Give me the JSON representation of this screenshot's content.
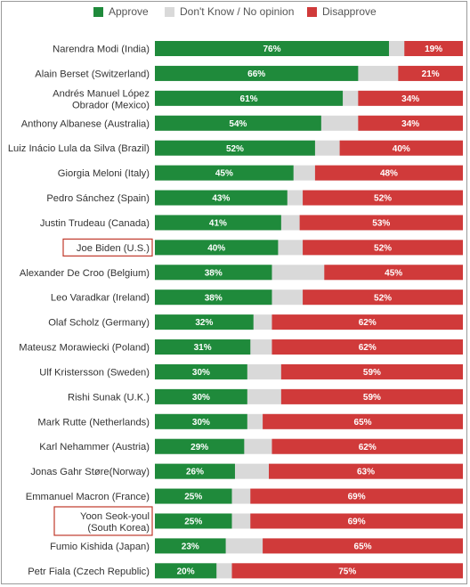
{
  "legend": {
    "approve": "Approve",
    "dont_know": "Don't Know / No opinion",
    "disapprove": "Disapprove"
  },
  "colors": {
    "approve": "#1f8a3b",
    "dont_know": "#d9d9d9",
    "disapprove": "#d03a3a",
    "highlight_box": "#c0392b"
  },
  "chart_data": {
    "type": "bar",
    "orientation": "horizontal",
    "stacked": true,
    "xlim": [
      0,
      100
    ],
    "legend_position": "top",
    "series_names": [
      "Approve",
      "Don't Know / No opinion",
      "Disapprove"
    ],
    "rows": [
      {
        "label": [
          "Narendra Modi (India)"
        ],
        "approve": 76,
        "disapprove": 19
      },
      {
        "label": [
          "Alain Berset (Switzerland)"
        ],
        "approve": 66,
        "disapprove": 21
      },
      {
        "label": [
          "Andrés Manuel López",
          "Obrador (Mexico)"
        ],
        "approve": 61,
        "disapprove": 34
      },
      {
        "label": [
          "Anthony Albanese (Australia)"
        ],
        "approve": 54,
        "disapprove": 34
      },
      {
        "label": [
          "Luiz Inácio Lula da Silva (Brazil)"
        ],
        "approve": 52,
        "disapprove": 40
      },
      {
        "label": [
          "Giorgia Meloni (Italy)"
        ],
        "approve": 45,
        "disapprove": 48
      },
      {
        "label": [
          "Pedro Sánchez (Spain)"
        ],
        "approve": 43,
        "disapprove": 52
      },
      {
        "label": [
          "Justin Trudeau (Canada)"
        ],
        "approve": 41,
        "disapprove": 53
      },
      {
        "label": [
          "Joe Biden (U.S.)"
        ],
        "approve": 40,
        "disapprove": 52,
        "highlighted": true
      },
      {
        "label": [
          "Alexander De Croo (Belgium)"
        ],
        "approve": 38,
        "disapprove": 45
      },
      {
        "label": [
          "Leo Varadkar (Ireland)"
        ],
        "approve": 38,
        "disapprove": 52
      },
      {
        "label": [
          "Olaf Scholz (Germany)"
        ],
        "approve": 32,
        "disapprove": 62
      },
      {
        "label": [
          "Mateusz Morawiecki (Poland)"
        ],
        "approve": 31,
        "disapprove": 62
      },
      {
        "label": [
          "Ulf Kristersson (Sweden)"
        ],
        "approve": 30,
        "disapprove": 59
      },
      {
        "label": [
          "Rishi Sunak (U.K.)"
        ],
        "approve": 30,
        "disapprove": 59
      },
      {
        "label": [
          "Mark Rutte (Netherlands)"
        ],
        "approve": 30,
        "disapprove": 65
      },
      {
        "label": [
          "Karl Nehammer (Austria)"
        ],
        "approve": 29,
        "disapprove": 62
      },
      {
        "label": [
          "Jonas Gahr Støre(Norway)"
        ],
        "approve": 26,
        "disapprove": 63
      },
      {
        "label": [
          "Emmanuel Macron (France)"
        ],
        "approve": 25,
        "disapprove": 69
      },
      {
        "label": [
          "Yoon Seok-youl",
          "(South Korea)"
        ],
        "approve": 25,
        "disapprove": 69,
        "highlighted": true
      },
      {
        "label": [
          "Fumio Kishida (Japan)"
        ],
        "approve": 23,
        "disapprove": 65
      },
      {
        "label": [
          "Petr Fiala (Czech Republic)"
        ],
        "approve": 20,
        "disapprove": 75
      }
    ]
  }
}
